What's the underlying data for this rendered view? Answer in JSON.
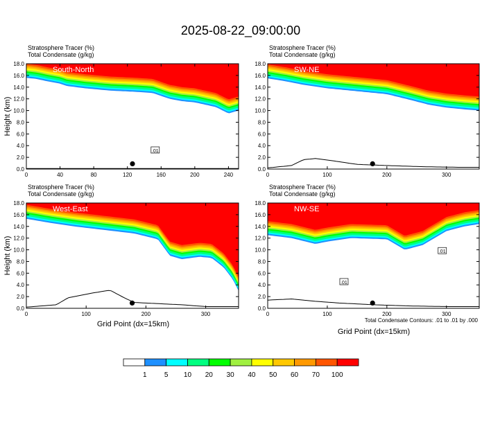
{
  "figure": {
    "title": "2025-08-22_09:00:00",
    "bottom_xlabel": "Grid Point (dx=15km)",
    "contour_note": "Total Condensate Contours: .01 to .01 by .000"
  },
  "colorbar": {
    "colors": [
      "#ffffff",
      "#1e90ff",
      "#00ffff",
      "#00ff80",
      "#00ff00",
      "#a0f040",
      "#ffff00",
      "#ffc800",
      "#ff9900",
      "#ff5500",
      "#ff0000"
    ],
    "labels": [
      "1",
      "5",
      "10",
      "20",
      "30",
      "40",
      "50",
      "60",
      "70",
      "100"
    ]
  },
  "chart_data": [
    {
      "type": "heatmap",
      "label": "South-North",
      "title_lines": [
        "Stratosphere Tracer   (%)",
        "Total Condensate   (g/kg)"
      ],
      "ylabel": "Height (km)",
      "xlim": [
        0,
        252
      ],
      "ylim": [
        0,
        18
      ],
      "xticks": [
        0,
        40,
        80,
        120,
        160,
        200,
        240
      ],
      "yticks": [
        "0.0",
        "2.0",
        "4.0",
        "6.0",
        "8.0",
        "10.0",
        "12.0",
        "14.0",
        "16.0",
        "18.0"
      ],
      "tropopause_km": [
        [
          0,
          15.6
        ],
        [
          12,
          15.4
        ],
        [
          25,
          15.0
        ],
        [
          40,
          14.6
        ],
        [
          48,
          14.2
        ],
        [
          70,
          13.8
        ],
        [
          100,
          13.4
        ],
        [
          130,
          13.2
        ],
        [
          150,
          13.0
        ],
        [
          170,
          12.0
        ],
        [
          185,
          11.6
        ],
        [
          200,
          11.4
        ],
        [
          225,
          10.6
        ],
        [
          240,
          9.5
        ],
        [
          252,
          10.0
        ]
      ],
      "terrain_km": [
        [
          0,
          0.1
        ],
        [
          252,
          0.1
        ]
      ],
      "marker_x": 126,
      "contour_labels": [
        {
          "text": ".01",
          "x": 153,
          "y": 3.2
        }
      ]
    },
    {
      "type": "heatmap",
      "label": "SW-NE",
      "title_lines": [
        "Stratosphere Tracer   (%)",
        "Total Condensate   (g/kg)"
      ],
      "ylabel": "",
      "xlim": [
        0,
        355
      ],
      "ylim": [
        0,
        18
      ],
      "xticks": [
        0,
        100,
        200,
        300
      ],
      "yticks": [
        "0.0",
        "2.0",
        "4.0",
        "6.0",
        "8.0",
        "10.0",
        "12.0",
        "14.0",
        "16.0",
        "18.0"
      ],
      "tropopause_km": [
        [
          0,
          15.5
        ],
        [
          30,
          15.0
        ],
        [
          60,
          14.4
        ],
        [
          100,
          13.8
        ],
        [
          150,
          13.3
        ],
        [
          200,
          12.8
        ],
        [
          240,
          11.8
        ],
        [
          270,
          11.0
        ],
        [
          300,
          10.5
        ],
        [
          330,
          10.2
        ],
        [
          355,
          10.0
        ]
      ],
      "terrain_km": [
        [
          0,
          0.2
        ],
        [
          40,
          0.6
        ],
        [
          60,
          1.6
        ],
        [
          80,
          1.8
        ],
        [
          110,
          1.4
        ],
        [
          150,
          0.8
        ],
        [
          200,
          0.6
        ],
        [
          260,
          0.4
        ],
        [
          320,
          0.3
        ],
        [
          355,
          0.3
        ]
      ],
      "marker_x": 176,
      "contour_labels": []
    },
    {
      "type": "heatmap",
      "label": "West-East",
      "title_lines": [
        "Stratosphere Tracer   (%)",
        "Total Condensate   (g/kg)"
      ],
      "ylabel": "Height (km)",
      "xlim": [
        0,
        355
      ],
      "ylim": [
        0,
        18
      ],
      "xticks": [
        0,
        100,
        200,
        300
      ],
      "yticks": [
        "0.0",
        "2.0",
        "4.0",
        "6.0",
        "8.0",
        "10.0",
        "12.0",
        "14.0",
        "16.0",
        "18.0"
      ],
      "tropopause_km": [
        [
          0,
          15.3
        ],
        [
          40,
          14.6
        ],
        [
          80,
          14.0
        ],
        [
          130,
          13.4
        ],
        [
          180,
          12.8
        ],
        [
          220,
          11.8
        ],
        [
          240,
          9.0
        ],
        [
          260,
          8.4
        ],
        [
          290,
          8.8
        ],
        [
          310,
          8.6
        ],
        [
          330,
          7.0
        ],
        [
          345,
          5.0
        ],
        [
          355,
          3.0
        ]
      ],
      "terrain_km": [
        [
          0,
          0.2
        ],
        [
          50,
          0.6
        ],
        [
          70,
          1.8
        ],
        [
          110,
          2.6
        ],
        [
          140,
          3.1
        ],
        [
          160,
          2.0
        ],
        [
          180,
          1.0
        ],
        [
          220,
          0.8
        ],
        [
          260,
          0.6
        ],
        [
          300,
          0.3
        ],
        [
          355,
          0.3
        ]
      ],
      "marker_x": 177,
      "contour_labels": []
    },
    {
      "type": "heatmap",
      "label": "NW-SE",
      "title_lines": [
        "Stratosphere Tracer   (%)",
        "Total Condensate   (g/kg)"
      ],
      "ylabel": "",
      "xlim": [
        0,
        355
      ],
      "ylim": [
        0,
        18
      ],
      "xticks": [
        0,
        100,
        200,
        300
      ],
      "yticks": [
        "0.0",
        "2.0",
        "4.0",
        "6.0",
        "8.0",
        "10.0",
        "12.0",
        "14.0",
        "16.0",
        "18.0"
      ],
      "tropopause_km": [
        [
          0,
          12.5
        ],
        [
          40,
          12.0
        ],
        [
          80,
          11.0
        ],
        [
          100,
          11.4
        ],
        [
          140,
          12.0
        ],
        [
          200,
          11.8
        ],
        [
          230,
          10.0
        ],
        [
          260,
          10.8
        ],
        [
          300,
          13.2
        ],
        [
          330,
          14.0
        ],
        [
          355,
          14.4
        ]
      ],
      "terrain_km": [
        [
          0,
          1.4
        ],
        [
          40,
          1.6
        ],
        [
          80,
          1.2
        ],
        [
          120,
          0.9
        ],
        [
          180,
          0.6
        ],
        [
          240,
          0.4
        ],
        [
          300,
          0.3
        ],
        [
          355,
          0.3
        ]
      ],
      "marker_x": 176,
      "contour_labels": [
        {
          "text": ".01",
          "x": 128,
          "y": 4.5
        },
        {
          "text": ".01",
          "x": 293,
          "y": 9.8
        }
      ]
    }
  ]
}
